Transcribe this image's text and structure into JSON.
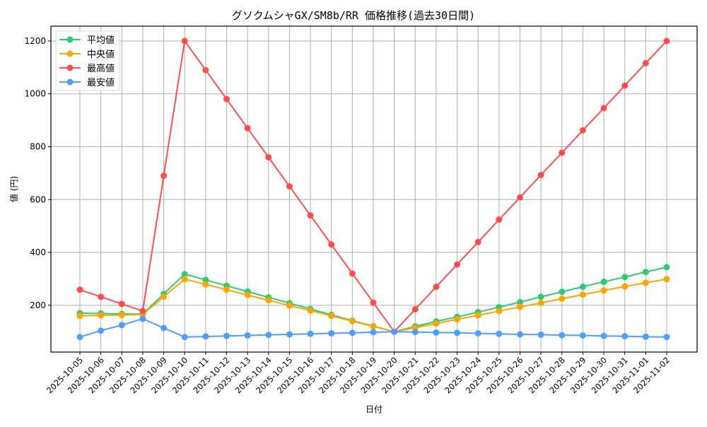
{
  "chart_data": {
    "type": "line",
    "title": "グソクムシャGX/SM8b/RR 価格推移(過去30日間)",
    "xlabel": "日付",
    "ylabel": "値 (円)",
    "ylim": [
      23,
      1256
    ],
    "yticks": [
      200,
      400,
      600,
      800,
      1000,
      1200
    ],
    "grid": true,
    "legend_position": "upper left",
    "categories": [
      "2025-10-05",
      "2025-10-06",
      "2025-10-07",
      "2025-10-08",
      "2025-10-09",
      "2025-10-10",
      "2025-10-11",
      "2025-10-12",
      "2025-10-13",
      "2025-10-14",
      "2025-10-15",
      "2025-10-16",
      "2025-10-17",
      "2025-10-18",
      "2025-10-19",
      "2025-10-20",
      "2025-10-21",
      "2025-10-22",
      "2025-10-23",
      "2025-10-24",
      "2025-10-25",
      "2025-10-26",
      "2025-10-27",
      "2025-10-28",
      "2025-10-29",
      "2025-10-30",
      "2025-10-31",
      "2025-11-01",
      "2025-11-02"
    ],
    "series": [
      {
        "name": "平均値",
        "color": "#2ecc71",
        "values": [
          170,
          169,
          167,
          167,
          243,
          318,
          296,
          274,
          252,
          230,
          208,
          186,
          164,
          142,
          121,
          100,
          120,
          139,
          156,
          174,
          193,
          212,
          232,
          251,
          270,
          289,
          307,
          326,
          344
        ]
      },
      {
        "name": "中央値",
        "color": "#ffa500",
        "values": [
          160,
          162,
          163,
          165,
          232,
          299,
          279,
          259,
          239,
          219,
          199,
          180,
          160,
          140,
          120,
          100,
          115,
          131,
          147,
          162,
          178,
          194,
          209,
          225,
          240,
          256,
          271,
          285,
          299
        ]
      },
      {
        "name": "最高値",
        "color": "#ff4d4d",
        "values": [
          259,
          232,
          205,
          178,
          690,
          1200,
          1090,
          980,
          870,
          760,
          650,
          540,
          430,
          320,
          210,
          100,
          185,
          270,
          354,
          439,
          524,
          608,
          693,
          777,
          862,
          946,
          1031,
          1116,
          1200
        ]
      },
      {
        "name": "最安値",
        "color": "#4d9fff",
        "values": [
          80,
          104,
          125,
          149,
          114,
          80,
          82,
          84,
          86,
          88,
          90,
          92,
          94,
          96,
          98,
          100,
          99,
          97,
          96,
          94,
          92,
          90,
          89,
          87,
          86,
          84,
          83,
          81,
          80
        ]
      }
    ]
  }
}
